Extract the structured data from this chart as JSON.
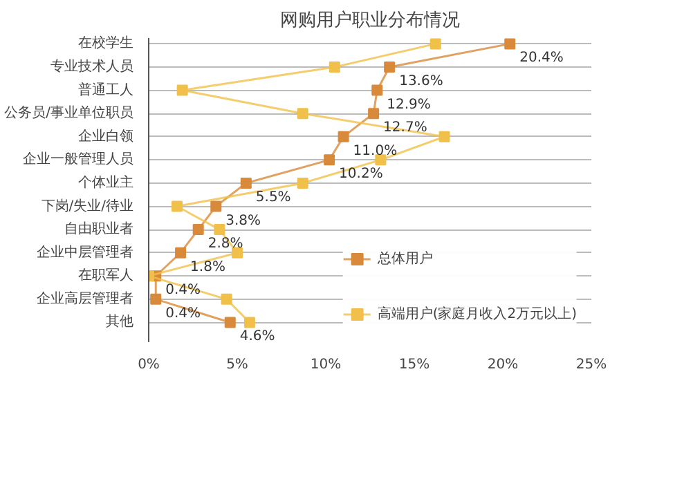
{
  "chart_data": {
    "type": "line",
    "title": "网购用户职业分布情况",
    "orientation": "horizontal",
    "categories": [
      "在校学生",
      "专业技术人员",
      "普通工人",
      "公务员/事业单位职员",
      "企业白领",
      "企业一般管理人员",
      "个体业主",
      "下岗/失业/待业",
      "自由职业者",
      "企业中层管理者",
      "在职军人",
      "企业高层管理者",
      "其他"
    ],
    "series": [
      {
        "name": "总体用户",
        "color": "#d9893a",
        "values": [
          20.4,
          13.6,
          12.9,
          12.7,
          11.0,
          10.2,
          5.5,
          3.8,
          2.8,
          1.8,
          0.4,
          0.4,
          4.6
        ],
        "value_labels": [
          "20.4%",
          "13.6%",
          "12.9%",
          "12.7%",
          "11.0%",
          "10.2%",
          "5.5%",
          "3.8%",
          "2.8%",
          "1.8%",
          "0.4%",
          "0.4%",
          "4.6%"
        ]
      },
      {
        "name": "高端用户(家庭月收入2万元以上)",
        "color": "#f0c04a",
        "values": [
          16.2,
          10.5,
          1.9,
          8.7,
          16.7,
          13.1,
          8.7,
          1.6,
          4.0,
          5.0,
          0.0,
          4.4,
          5.7
        ]
      }
    ],
    "xlim": [
      0,
      25
    ],
    "xticks": [
      {
        "value": 0,
        "label": "0%"
      },
      {
        "value": 5,
        "label": "5%"
      },
      {
        "value": 10,
        "label": "10%"
      },
      {
        "value": 15,
        "label": "15%"
      },
      {
        "value": 20,
        "label": "20%"
      },
      {
        "value": 25,
        "label": "25%"
      }
    ],
    "grid": "y",
    "legend": "bottom right",
    "marker": "square",
    "line_style": "solid"
  }
}
